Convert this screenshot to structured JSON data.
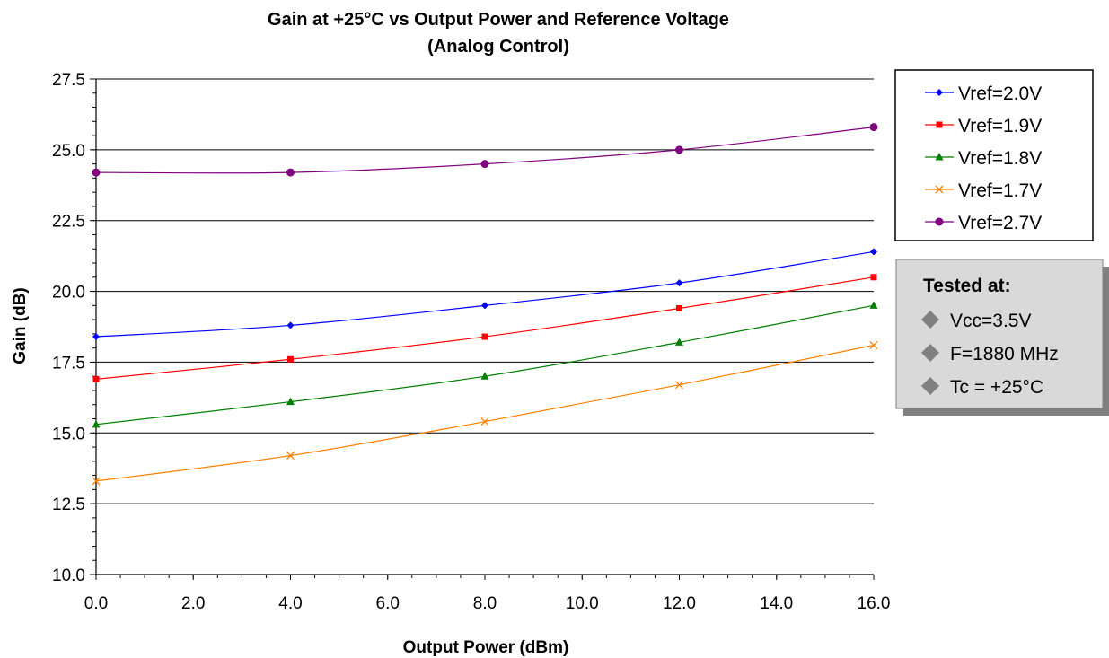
{
  "chart_data": {
    "type": "line",
    "title": "Gain at +25°C vs Output Power and Reference Voltage",
    "subtitle": "(Analog Control)",
    "xlabel": "Output Power (dBm)",
    "ylabel": "Gain (dB)",
    "xlim": [
      0,
      16
    ],
    "ylim": [
      10,
      27.5
    ],
    "x_ticks": [
      "0.0",
      "2.0",
      "4.0",
      "6.0",
      "8.0",
      "10.0",
      "12.0",
      "14.0",
      "16.0"
    ],
    "y_ticks": [
      "10.0",
      "12.5",
      "15.0",
      "17.5",
      "20.0",
      "22.5",
      "25.0",
      "27.5"
    ],
    "grid": "horizontal",
    "legend_position": "right",
    "x": [
      0,
      4,
      8,
      12,
      16
    ],
    "series": [
      {
        "name": "Vref=2.0V",
        "color": "#0000ff",
        "marker": "diamond",
        "values": [
          18.4,
          18.8,
          19.5,
          20.3,
          21.4
        ]
      },
      {
        "name": "Vref=1.9V",
        "color": "#ff0000",
        "marker": "square",
        "values": [
          16.9,
          17.6,
          18.4,
          19.4,
          20.5
        ]
      },
      {
        "name": "Vref=1.8V",
        "color": "#008000",
        "marker": "triangle",
        "values": [
          15.3,
          16.1,
          17.0,
          18.2,
          19.5
        ]
      },
      {
        "name": "Vref=1.7V",
        "color": "#ff8000",
        "marker": "x",
        "values": [
          13.3,
          14.2,
          15.4,
          16.7,
          18.1
        ]
      },
      {
        "name": "Vref=2.7V",
        "color": "#800080",
        "marker": "circle",
        "values": [
          24.2,
          24.2,
          24.5,
          25.0,
          25.8
        ]
      }
    ]
  },
  "note": {
    "title": "Tested at:",
    "bullet_icon": "diamond-bullet-icon",
    "items": [
      "Vcc=3.5V",
      "F=1880 MHz",
      "Tc = +25°C"
    ]
  }
}
